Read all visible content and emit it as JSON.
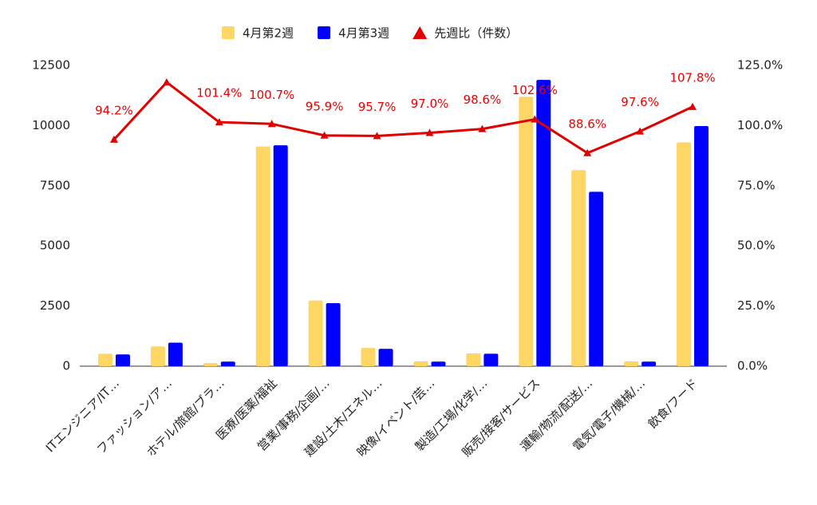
{
  "chart_data": {
    "type": "bar_line",
    "categories": [
      "ITエンジニア/IT…",
      "ファッション/ア…",
      "ホテル/旅館/ブラ…",
      "医療/医薬/福祉",
      "営業/事務/企画/…",
      "建設/土木/エネル…",
      "映像/イベント/芸…",
      "製造/工場/化学/…",
      "販売/接客/サービス",
      "運輸/物流/配送/…",
      "電気/電子/機械/…",
      "飲食/フード"
    ],
    "series": [
      {
        "name": "4月第2週",
        "color": "#fdd663",
        "type": "bar",
        "values": [
          520,
          820,
          130,
          9130,
          2730,
          760,
          200,
          530,
          11200,
          8150,
          200,
          9300
        ]
      },
      {
        "name": "4月第3週",
        "color": "#0000ff",
        "type": "bar",
        "values": [
          490,
          980,
          190,
          9180,
          2620,
          720,
          190,
          520,
          11900,
          7250,
          190,
          9980
        ]
      },
      {
        "name": "先週比（件数）",
        "color": "#e00000",
        "type": "line",
        "axis": "y2",
        "values": [
          94.2,
          118.0,
          101.4,
          100.7,
          95.9,
          95.7,
          97.0,
          98.6,
          102.6,
          88.6,
          97.6,
          107.8
        ],
        "value_labels": [
          "94.2%",
          null,
          "101.4%",
          "100.7%",
          "95.9%",
          "95.7%",
          "97.0%",
          "98.6%",
          "102.6%",
          "88.6%",
          "97.6%",
          "107.8%"
        ]
      }
    ],
    "ylim": [
      0,
      12500
    ],
    "yticks": [
      0,
      2500,
      5000,
      7500,
      10000,
      12500
    ],
    "y2lim": [
      0,
      125
    ],
    "y2ticks": [
      {
        "value": 0,
        "label": "0.0%"
      },
      {
        "value": 25,
        "label": "25.0%"
      },
      {
        "value": 50,
        "label": "50.0%"
      },
      {
        "value": 75,
        "label": "75.0%"
      },
      {
        "value": 100,
        "label": "100.0%"
      },
      {
        "value": 125,
        "label": "125.0%"
      }
    ],
    "grid": false,
    "legend": "top"
  }
}
